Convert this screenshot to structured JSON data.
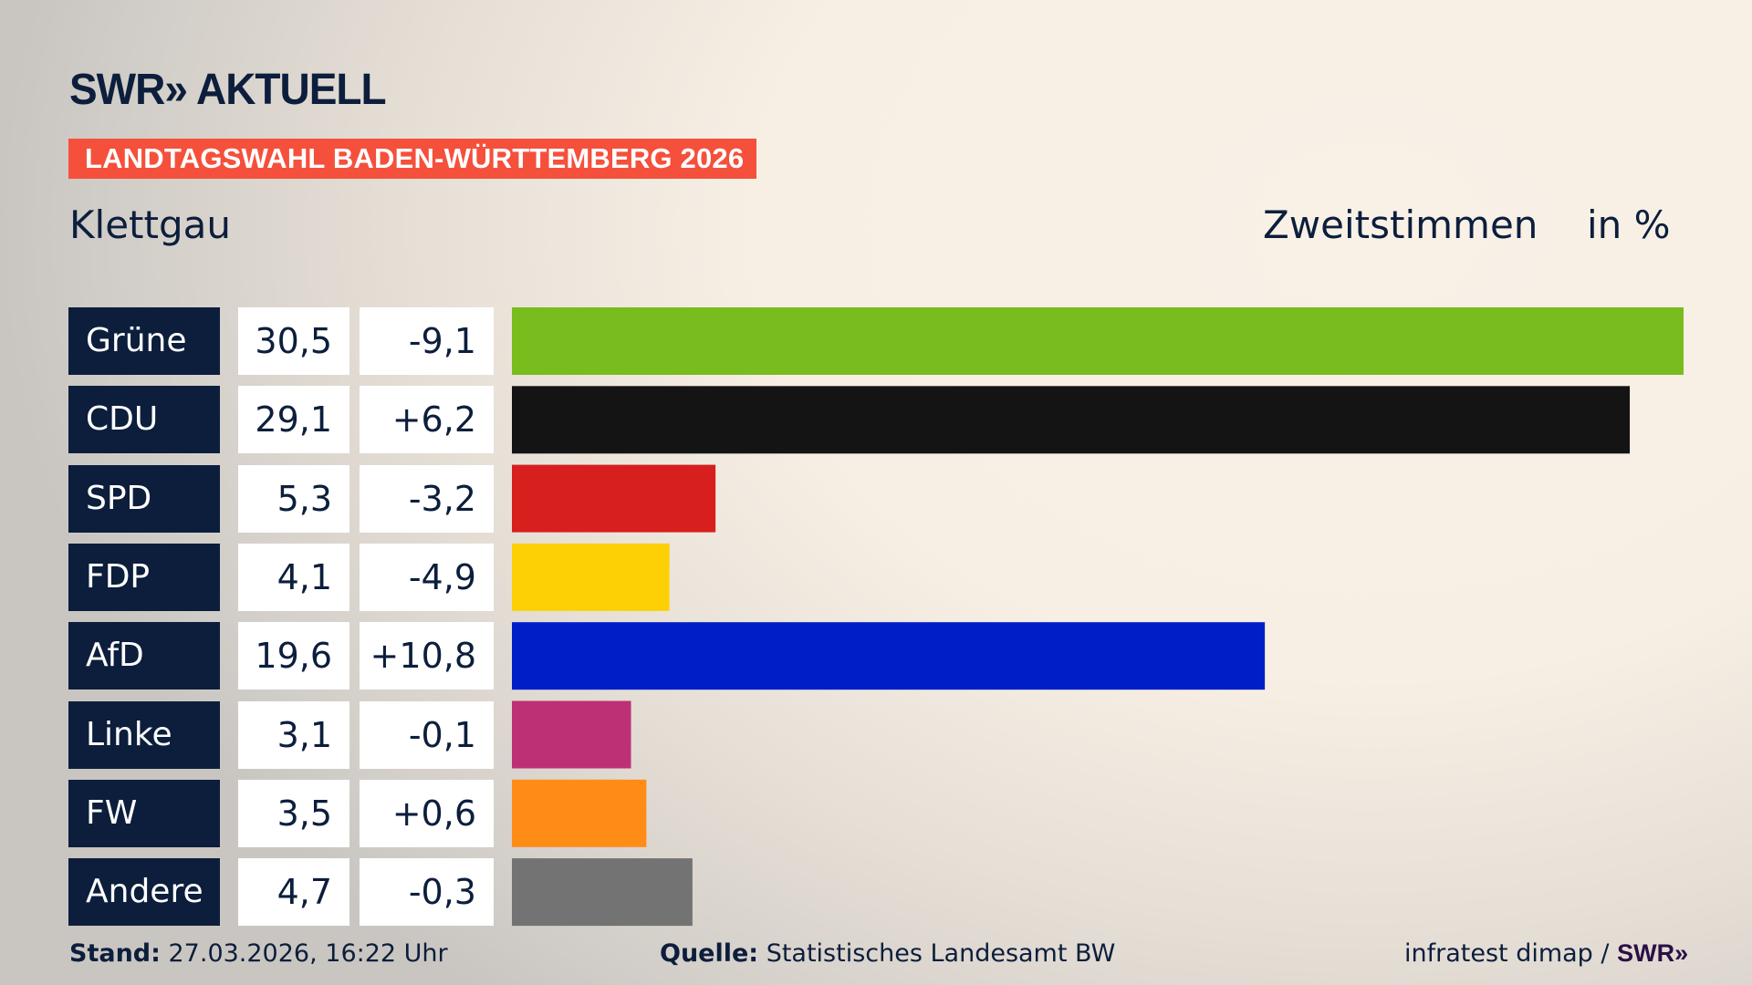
{
  "header": {
    "logo": "SWR» AKTUELL",
    "banner": "LANDTAGSWAHL BADEN-WÜRTTEMBERG 2026",
    "region": "Klettgau",
    "vote_type": "Zweitstimmen",
    "unit": "in %"
  },
  "chart_data": {
    "type": "bar",
    "orientation": "horizontal",
    "categories": [
      "Grüne",
      "CDU",
      "SPD",
      "FDP",
      "AfD",
      "Linke",
      "FW",
      "Andere"
    ],
    "values": [
      30.5,
      29.1,
      5.3,
      4.1,
      19.6,
      3.1,
      3.5,
      4.7
    ],
    "value_labels": [
      "30,5",
      "29,1",
      "5,3",
      "4,1",
      "19,6",
      "3,1",
      "3,5",
      "4,7"
    ],
    "diff_labels": [
      "-9,1",
      "+6,2",
      "-3,2",
      "-4,9",
      "+10,8",
      "-0,1",
      "+0,6",
      "-0,3"
    ],
    "diffs": [
      -9.1,
      6.2,
      -3.2,
      -4.9,
      10.8,
      -0.1,
      0.6,
      -0.3
    ],
    "colors": [
      "#78bc1e",
      "#141414",
      "#d71f1d",
      "#fdd006",
      "#001ec8",
      "#be3075",
      "#ff8c17",
      "#737373"
    ],
    "xlim": [
      0,
      30.5
    ],
    "grid": false
  },
  "footer": {
    "stand_label": "Stand:",
    "stand_value": " 27.03.2026, 16:22 Uhr",
    "source_label": "Quelle:",
    "source_value": " Statistisches Landesamt BW",
    "credit": "infratest dimap / ",
    "credit_logo": "SWR»"
  }
}
